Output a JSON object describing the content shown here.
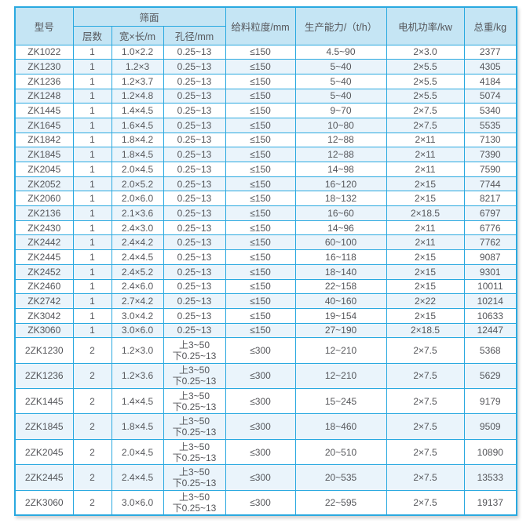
{
  "colors": {
    "border": "#2aa9e0",
    "header_bg": "#c5e5f4",
    "row_alt_bg": "#eaf4fb",
    "text": "#55565a"
  },
  "table": {
    "header": {
      "model": "型号",
      "screen_surface": "筛面",
      "layers": "层数",
      "width_length": "宽×长/m",
      "aperture": "孔径/mm",
      "feed_size": "给料粒度/mm",
      "capacity": "生产能力/（t/h）",
      "motor_power": "电机功率/kw",
      "total_weight": "总重/kg"
    },
    "rows": [
      [
        "ZK1022",
        "1",
        "1.0×2.2",
        "0.25~13",
        "≤150",
        "4.5~90",
        "2×3.0",
        "2377"
      ],
      [
        "ZK1230",
        "1",
        "1.2×3",
        "0.25~13",
        "≤150",
        "5~40",
        "2×5.5",
        "4305"
      ],
      [
        "ZK1236",
        "1",
        "1.2×3.7",
        "0.25~13",
        "≤150",
        "5~40",
        "2×5.5",
        "4184"
      ],
      [
        "ZK1248",
        "1",
        "1.2×4.8",
        "0.25~13",
        "≤150",
        "5~40",
        "2×5.5",
        "5074"
      ],
      [
        "ZK1445",
        "1",
        "1.4×4.5",
        "0.25~13",
        "≤150",
        "9~70",
        "2×7.5",
        "5340"
      ],
      [
        "ZK1645",
        "1",
        "1.6×4.5",
        "0.25~13",
        "≤150",
        "10~80",
        "2×7.5",
        "5535"
      ],
      [
        "ZK1842",
        "1",
        "1.8×4.2",
        "0.25~13",
        "≤150",
        "12~88",
        "2×11",
        "7130"
      ],
      [
        "ZK1845",
        "1",
        "1.8×4.5",
        "0.25~13",
        "≤150",
        "12~88",
        "2×11",
        "7390"
      ],
      [
        "ZK2045",
        "1",
        "2.0×4.5",
        "0.25~13",
        "≤150",
        "14~98",
        "2×11",
        "7590"
      ],
      [
        "ZK2052",
        "1",
        "2.0×5.2",
        "0.25~13",
        "≤150",
        "16~120",
        "2×15",
        "7744"
      ],
      [
        "ZK2060",
        "1",
        "2.0×6.0",
        "0.25~13",
        "≤150",
        "18~132",
        "2×15",
        "8217"
      ],
      [
        "ZK2136",
        "1",
        "2.1×3.6",
        "0.25~13",
        "≤150",
        "16~60",
        "2×18.5",
        "6797"
      ],
      [
        "ZK2430",
        "1",
        "2.4×3.0",
        "0.25~13",
        "≤150",
        "14~96",
        "2×11",
        "6776"
      ],
      [
        "ZK2442",
        "1",
        "2.4×4.2",
        "0.25~13",
        "≤150",
        "60~100",
        "2×11",
        "7762"
      ],
      [
        "ZK2445",
        "1",
        "2.4×4.5",
        "0.25~13",
        "≤150",
        "16~118",
        "2×15",
        "9087"
      ],
      [
        "ZK2452",
        "1",
        "2.4×5.2",
        "0.25~13",
        "≤150",
        "18~140",
        "2×15",
        "9301"
      ],
      [
        "ZK2460",
        "1",
        "2.4×6.0",
        "0.25~13",
        "≤150",
        "22~158",
        "2×15",
        "10011"
      ],
      [
        "ZK2742",
        "1",
        "2.7×4.2",
        "0.25~13",
        "≤150",
        "40~160",
        "2×22",
        "10214"
      ],
      [
        "ZK3042",
        "1",
        "3.0×4.2",
        "0.25~13",
        "≤150",
        "19~154",
        "2×15",
        "10633"
      ],
      [
        "ZK3060",
        "1",
        "3.0×6.0",
        "0.25~13",
        "≤150",
        "27~190",
        "2×18.5",
        "12447"
      ],
      [
        "2ZK1230",
        "2",
        "1.2×3.0",
        [
          "上3~50",
          "下0.25~13"
        ],
        "≤300",
        "12~210",
        "2×7.5",
        "5368"
      ],
      [
        "2ZK1236",
        "2",
        "1.2×3.6",
        [
          "上3~50",
          "下0.25~13"
        ],
        "≤300",
        "12~210",
        "2×7.5",
        "5629"
      ],
      [
        "2ZK1445",
        "2",
        "1.4×4.5",
        [
          "上3~50",
          "下0.25~13"
        ],
        "≤300",
        "15~245",
        "2×7.5",
        "9179"
      ],
      [
        "2ZK1845",
        "2",
        "1.8×4.5",
        [
          "上3~50",
          "下0.25~13"
        ],
        "≤300",
        "18~460",
        "2×7.5",
        "9509"
      ],
      [
        "2ZK2045",
        "2",
        "2.0×4.5",
        [
          "上3~50",
          "下0.25~13"
        ],
        "≤300",
        "20~510",
        "2×7.5",
        "10890"
      ],
      [
        "2ZK2445",
        "2",
        "2.4×4.5",
        [
          "上3~50",
          "下0.25~13"
        ],
        "≤300",
        "20~535",
        "2×7.5",
        "13533"
      ],
      [
        "2ZK3060",
        "2",
        "3.0×6.0",
        [
          "上3~50",
          "下0.25~13"
        ],
        "≤300",
        "22~595",
        "2×7.5",
        "19137"
      ]
    ]
  }
}
